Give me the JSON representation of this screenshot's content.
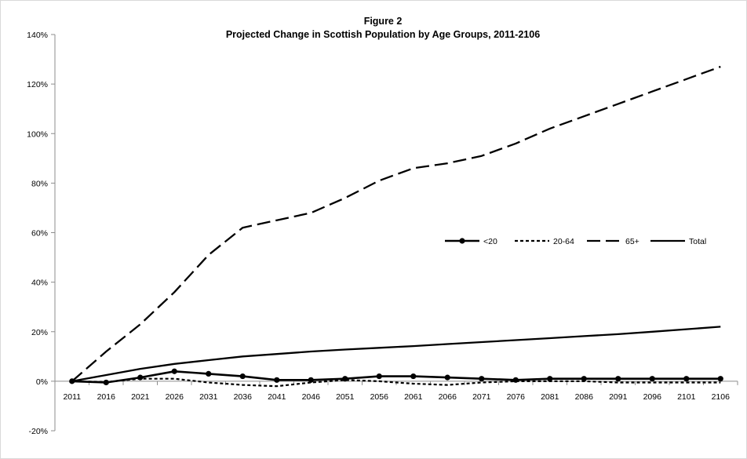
{
  "chart_data": {
    "type": "line",
    "title": "Figure 2",
    "subtitle": "Projected Change in Scottish Population by Age Groups, 2011-2106",
    "xlabel": "",
    "ylabel": "",
    "categories": [
      "2011",
      "2016",
      "2021",
      "2026",
      "2031",
      "2036",
      "2041",
      "2046",
      "2051",
      "2056",
      "2061",
      "2066",
      "2071",
      "2076",
      "2081",
      "2086",
      "2091",
      "2096",
      "2101",
      "2106"
    ],
    "ylim": [
      -20,
      140
    ],
    "yticks": [
      -20,
      0,
      20,
      40,
      60,
      80,
      100,
      120,
      140
    ],
    "ytick_labels": [
      "-20%",
      "0%",
      "20%",
      "40%",
      "60%",
      "80%",
      "100%",
      "120%",
      "140%"
    ],
    "grid": false,
    "legend_position": "right-middle",
    "series": [
      {
        "name": "<20",
        "style": "solid-markers",
        "values": [
          0,
          -0.5,
          1.5,
          4,
          3,
          2,
          0.5,
          0.5,
          1,
          2,
          2,
          1.5,
          1,
          0.5,
          1,
          1,
          1,
          1,
          1,
          1
        ]
      },
      {
        "name": "20-64",
        "style": "short-dash",
        "values": [
          0,
          -0.3,
          1,
          1,
          -0.5,
          -1.5,
          -2,
          -0.5,
          0.5,
          0,
          -1,
          -1.5,
          -0.5,
          0,
          0,
          0,
          -0.5,
          -0.5,
          -0.5,
          -0.5
        ]
      },
      {
        "name": "65+",
        "style": "long-dash",
        "values": [
          0,
          12,
          23,
          36,
          51,
          62,
          65,
          68,
          74,
          81,
          86,
          88,
          91,
          96,
          102,
          107,
          112,
          117,
          122,
          127
        ]
      },
      {
        "name": "Total",
        "style": "solid",
        "values": [
          0,
          2.5,
          5,
          7,
          8.5,
          10,
          11,
          12,
          12.8,
          13.5,
          14.2,
          15,
          15.8,
          16.6,
          17.4,
          18.2,
          19,
          20,
          21,
          22
        ]
      }
    ],
    "colors": {
      "line": "#000000",
      "axis": "#8c8c8c",
      "background": "#ffffff",
      "frame": "#d9d9d9"
    }
  }
}
